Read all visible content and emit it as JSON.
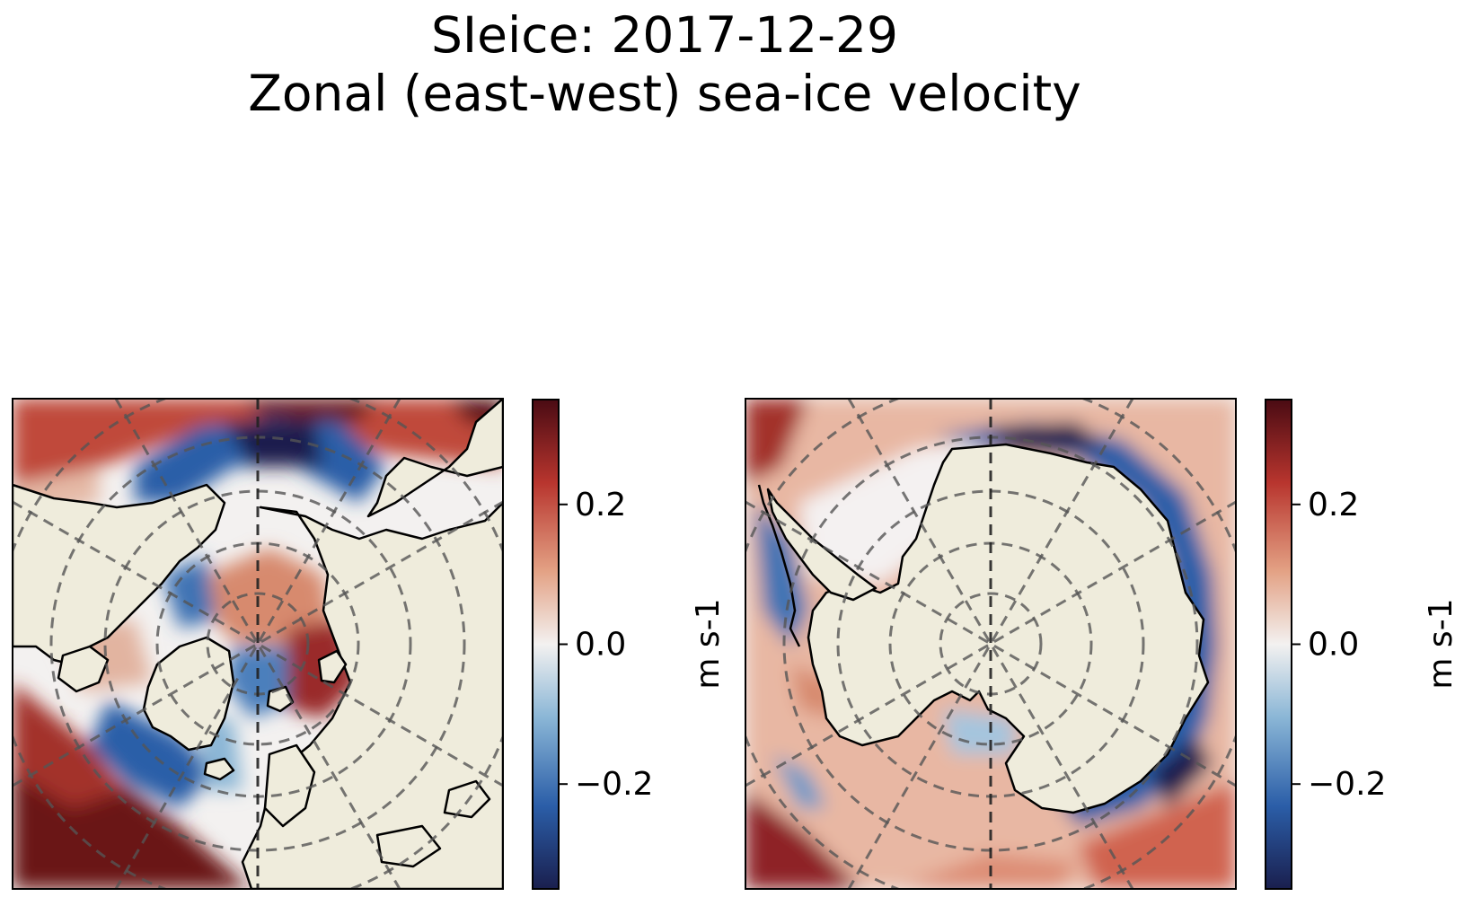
{
  "figure": {
    "title_line1": "SIeice: 2017-12-29",
    "title_line2": "Zonal (east-west) sea-ice velocity"
  },
  "panels": [
    {
      "hemisphere": "north",
      "colorbar": {
        "label": "m s-1",
        "ticks": [
          "0.2",
          "0.0",
          "−0.2"
        ],
        "tick_values": [
          0.2,
          0.0,
          -0.2
        ],
        "vmin": -0.35,
        "vmax": 0.35
      }
    },
    {
      "hemisphere": "south",
      "colorbar": {
        "label": "m s-1",
        "ticks": [
          "0.2",
          "0.0",
          "−0.2"
        ],
        "tick_values": [
          0.2,
          0.0,
          -0.2
        ],
        "vmin": -0.35,
        "vmax": 0.35
      }
    }
  ],
  "colors": {
    "land": "#efecdc",
    "colormap": [
      "#1a1f4e",
      "#2b5ea8",
      "#8ab6d6",
      "#f3f1f0",
      "#e3a184",
      "#b8352e",
      "#4a0b13"
    ],
    "graticule": "#555555"
  }
}
